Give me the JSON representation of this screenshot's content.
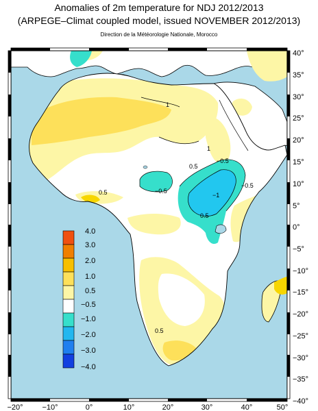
{
  "title": "Anomalies of 2m temperature for NDJ 2012/2013",
  "subtitle": "(ARPEGE–Climat coupled model, issued NOVEMBER 2012/2013)",
  "credit": "Direction de la Météorologie Nationale, Morocco",
  "axes": {
    "lon_ticks": [
      "−20°",
      "−10°",
      "0°",
      "10°",
      "20°",
      "30°",
      "40°",
      "50°"
    ],
    "lat_ticks": [
      "40°",
      "35°",
      "30°",
      "25°",
      "20°",
      "15°",
      "10°",
      "5°",
      "0°",
      "−5°",
      "−10°",
      "−15°",
      "−20°",
      "−25°",
      "−30°",
      "−35°",
      "−40°"
    ]
  },
  "legend": {
    "labels": [
      "4.0",
      "3.0",
      "2.0",
      "1.0",
      "0.5",
      "−0.5",
      "−1.0",
      "−2.0",
      "−3.0",
      "−4.0"
    ],
    "colors": [
      "#f05010",
      "#f07f00",
      "#f7bf00",
      "#fde05a",
      "#fdf6a6",
      "#ffffff",
      "#36dfcb",
      "#22b7ef",
      "#1f7fef",
      "#1240e0"
    ]
  },
  "contour_labels": [
    "1",
    "1",
    "0.5",
    "−0.5",
    "−0.5",
    "−0.5",
    "−1",
    "0.5",
    "0.5",
    "0.5"
  ],
  "colors": {
    "ocean": "#aad8e8",
    "land_neutral": "#ffffff",
    "positive_weak": "#fdf6a6",
    "positive": "#fde05a",
    "positive_strong": "#f7d600",
    "negative_weak": "#36dfcb",
    "negative": "#22c7ef"
  }
}
